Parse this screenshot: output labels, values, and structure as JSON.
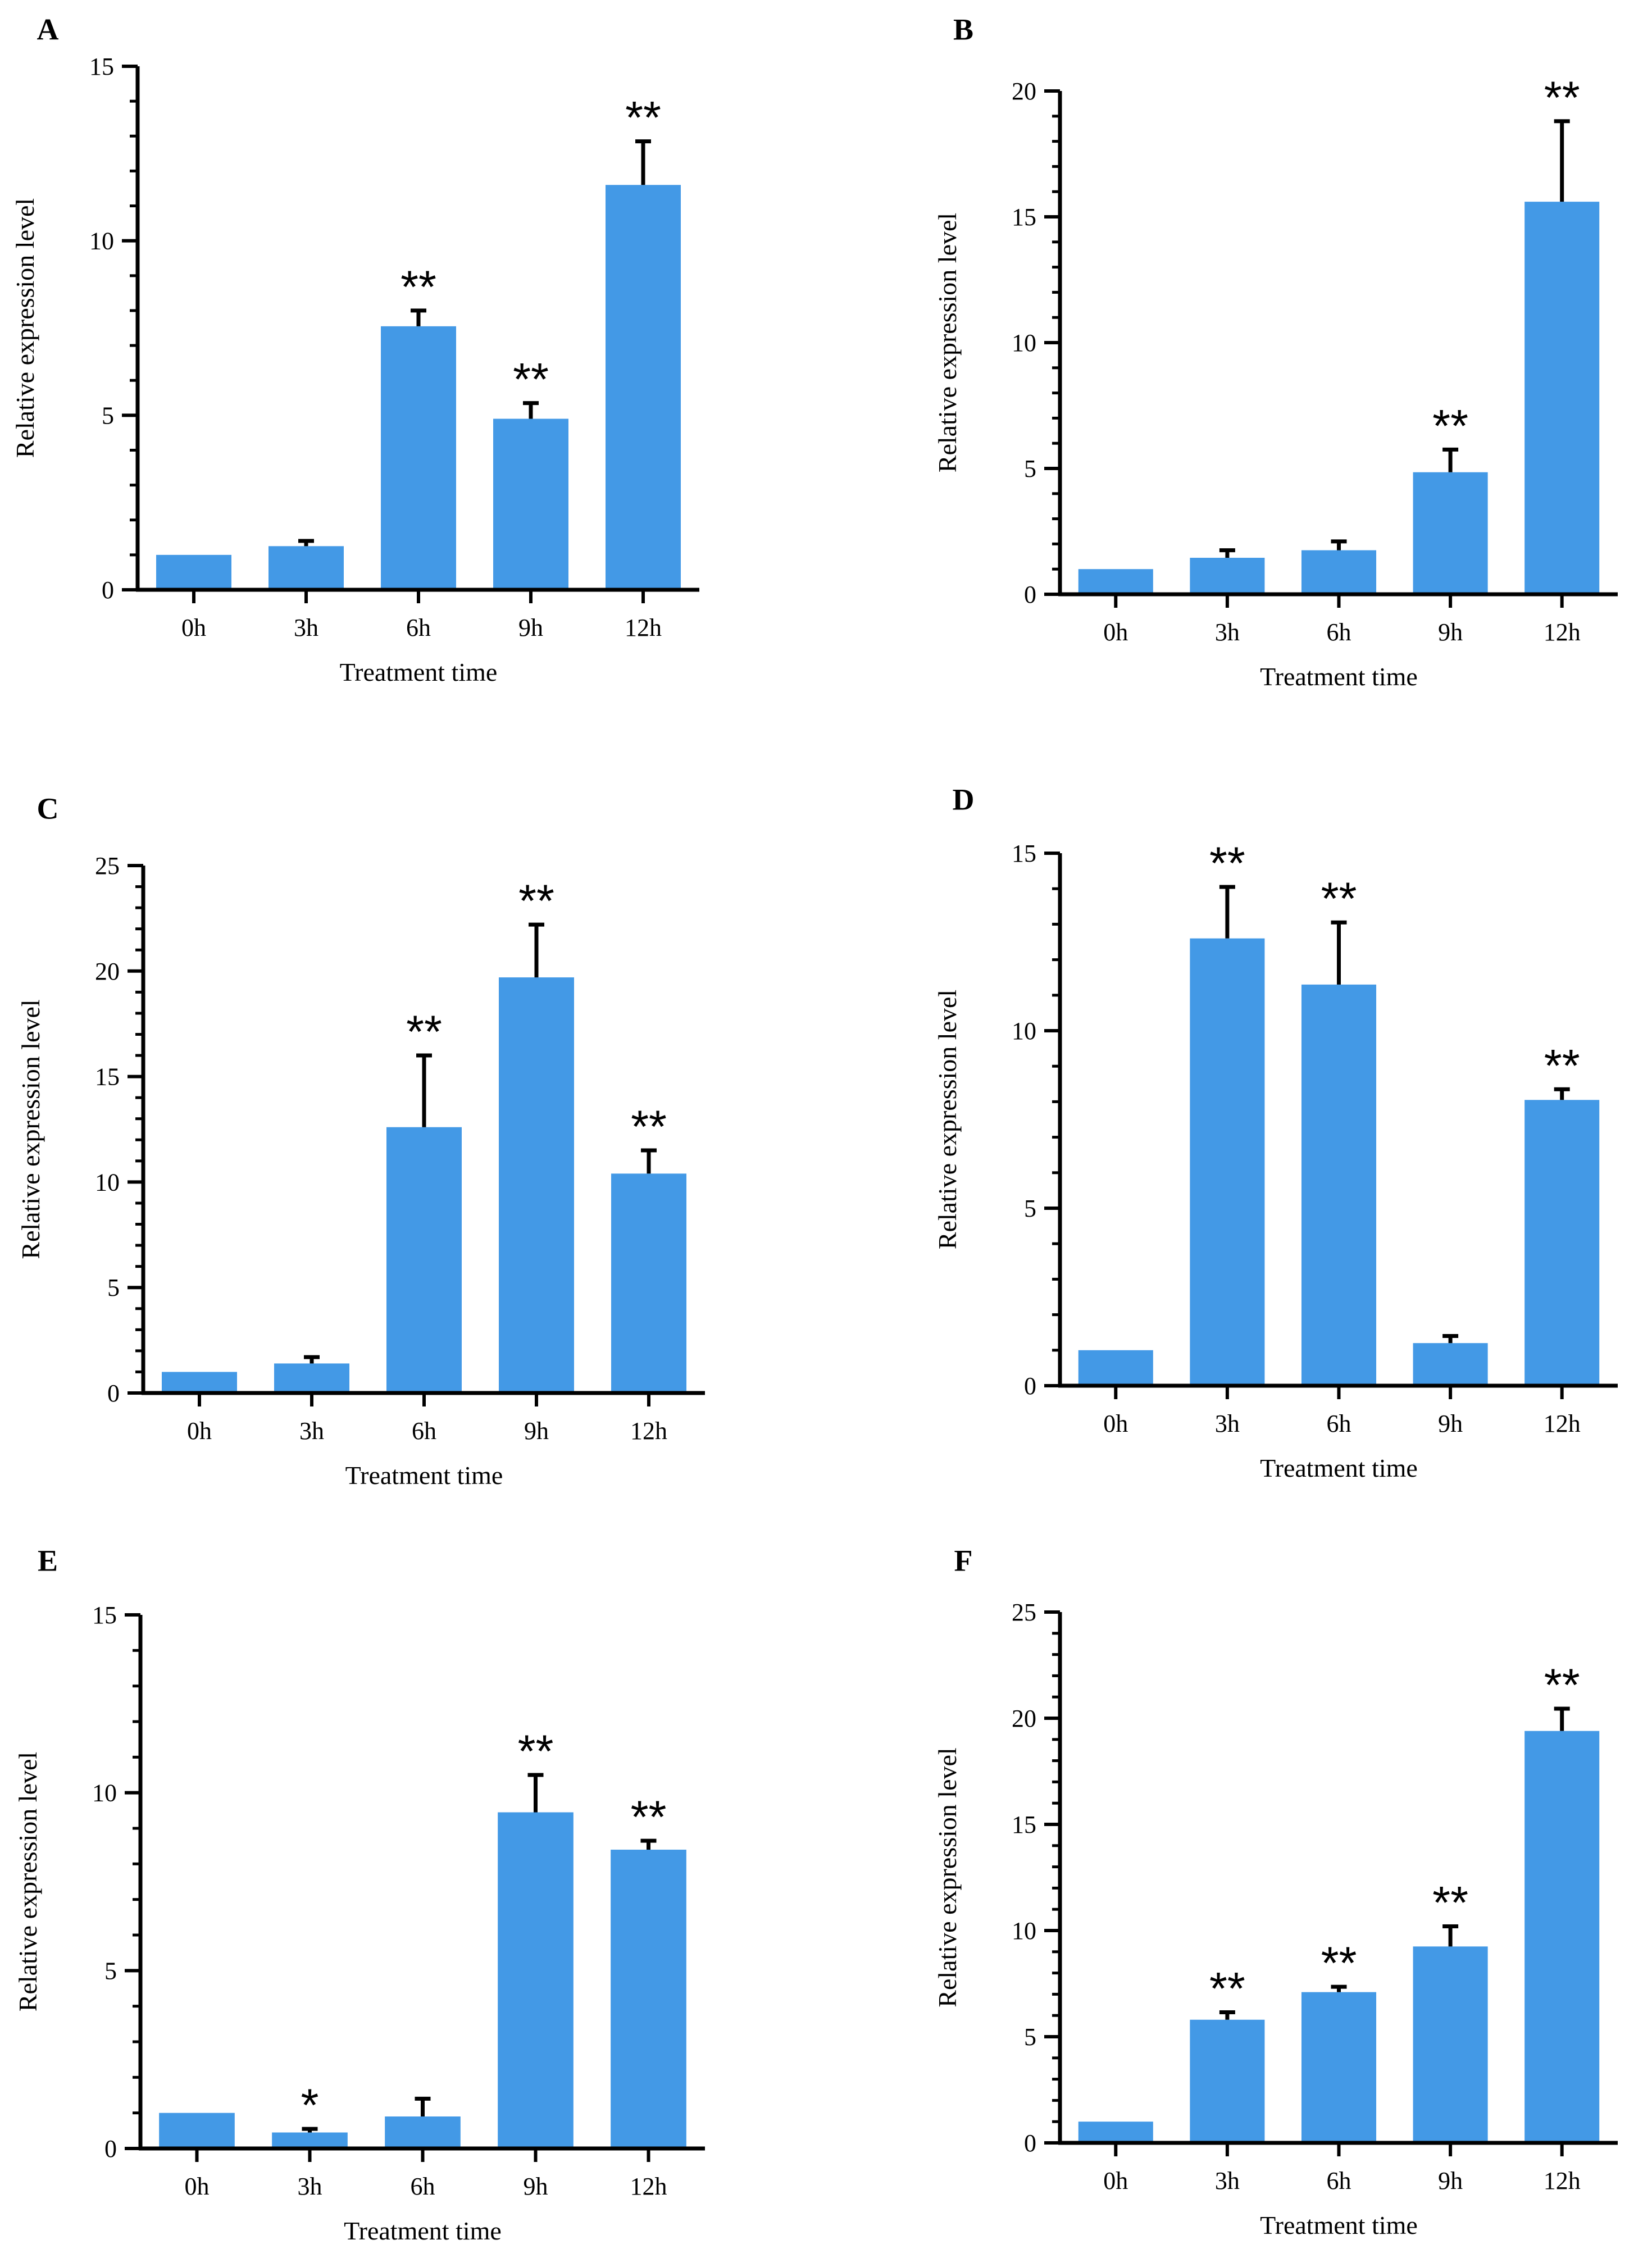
{
  "colors": {
    "bar": "#4399E6",
    "axis": "#000000"
  },
  "chart_data": [
    {
      "id": "A",
      "type": "bar",
      "label": "A",
      "xlabel": "Treatment time",
      "ylabel": "Relative expression level",
      "ylim": [
        0,
        15
      ],
      "yticks": [
        0,
        5,
        10,
        15
      ],
      "minor_step": 1,
      "categories": [
        "0h",
        "3h",
        "6h",
        "9h",
        "12h"
      ],
      "values": [
        1.0,
        1.25,
        7.55,
        4.9,
        11.6
      ],
      "errors": [
        0,
        0.15,
        0.45,
        0.45,
        1.25
      ],
      "significance": [
        "",
        "",
        "**",
        "**",
        "**"
      ]
    },
    {
      "id": "B",
      "type": "bar",
      "label": "B",
      "xlabel": "Treatment time",
      "ylabel": "Relative expression level",
      "ylim": [
        0,
        20
      ],
      "yticks": [
        0,
        5,
        10,
        15,
        20
      ],
      "minor_step": 1,
      "categories": [
        "0h",
        "3h",
        "6h",
        "9h",
        "12h"
      ],
      "values": [
        1.0,
        1.45,
        1.75,
        4.85,
        15.6
      ],
      "errors": [
        0,
        0.3,
        0.35,
        0.9,
        3.2
      ],
      "significance": [
        "",
        "",
        "",
        "**",
        "**"
      ]
    },
    {
      "id": "C",
      "type": "bar",
      "label": "C",
      "xlabel": "Treatment time",
      "ylabel": "Relative expression level",
      "ylim": [
        0,
        25
      ],
      "yticks": [
        0,
        5,
        10,
        15,
        20,
        25
      ],
      "minor_step": 1,
      "categories": [
        "0h",
        "3h",
        "6h",
        "9h",
        "12h"
      ],
      "values": [
        1.0,
        1.4,
        12.6,
        19.7,
        10.4
      ],
      "errors": [
        0,
        0.3,
        3.4,
        2.5,
        1.1
      ],
      "significance": [
        "",
        "",
        "**",
        "**",
        "**"
      ]
    },
    {
      "id": "D",
      "type": "bar",
      "label": "D",
      "xlabel": "Treatment time",
      "ylabel": "Relative expression level",
      "ylim": [
        0,
        15
      ],
      "yticks": [
        0,
        5,
        10,
        15
      ],
      "minor_step": 1,
      "categories": [
        "0h",
        "3h",
        "6h",
        "9h",
        "12h"
      ],
      "values": [
        1.0,
        12.6,
        11.3,
        1.2,
        8.05
      ],
      "errors": [
        0,
        1.45,
        1.75,
        0.2,
        0.3
      ],
      "significance": [
        "",
        "**",
        "**",
        "",
        "**"
      ]
    },
    {
      "id": "E",
      "type": "bar",
      "label": "E",
      "xlabel": "Treatment time",
      "ylabel": "Relative expression level",
      "ylim": [
        0,
        15
      ],
      "yticks": [
        0,
        5,
        10,
        15
      ],
      "minor_step": 1,
      "categories": [
        "0h",
        "3h",
        "6h",
        "9h",
        "12h"
      ],
      "values": [
        1.0,
        0.45,
        0.9,
        9.45,
        8.4
      ],
      "errors": [
        0,
        0.1,
        0.5,
        1.05,
        0.25
      ],
      "significance": [
        "",
        "*",
        "",
        "**",
        "**"
      ]
    },
    {
      "id": "F",
      "type": "bar",
      "label": "F",
      "xlabel": "Treatment time",
      "ylabel": "Relative expression level",
      "ylim": [
        0,
        25
      ],
      "yticks": [
        0,
        5,
        10,
        15,
        20,
        25
      ],
      "minor_step": 1,
      "categories": [
        "0h",
        "3h",
        "6h",
        "9h",
        "12h"
      ],
      "values": [
        1.0,
        5.8,
        7.1,
        9.25,
        19.4
      ],
      "errors": [
        0,
        0.35,
        0.25,
        0.95,
        1.05
      ],
      "significance": [
        "",
        "**",
        "**",
        "**",
        "**"
      ]
    }
  ]
}
